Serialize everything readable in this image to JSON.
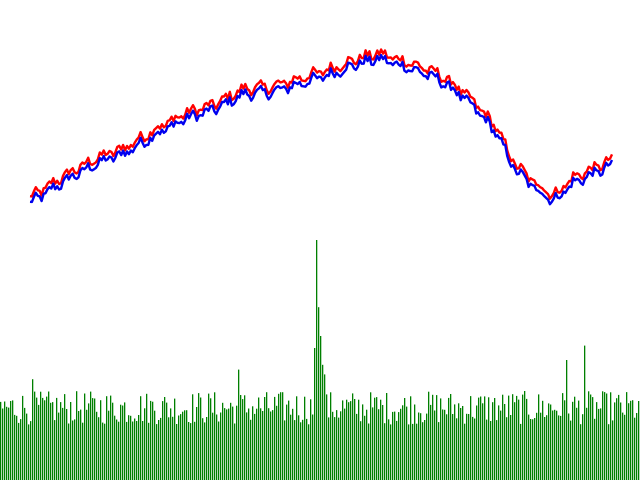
{
  "chart_data": {
    "type": "line",
    "title": "",
    "xlabel": "",
    "ylabel": "",
    "axes_visible": false,
    "grid": false,
    "legend": "none",
    "colors": {
      "series_red": "#ff0000",
      "series_blue": "#0000ee",
      "volume": "#008000",
      "background": "#ffffff"
    },
    "price_panel": {
      "ylim": [
        0,
        100
      ],
      "anchors": [
        [
          0,
          13
        ],
        [
          8,
          24
        ],
        [
          14,
          31
        ],
        [
          20,
          36
        ],
        [
          26,
          44
        ],
        [
          32,
          51
        ],
        [
          38,
          55
        ],
        [
          44,
          62
        ],
        [
          50,
          63
        ],
        [
          56,
          67
        ],
        [
          62,
          71
        ],
        [
          68,
          76
        ],
        [
          72,
          78
        ],
        [
          78,
          74
        ],
        [
          84,
          69
        ],
        [
          88,
          63
        ],
        [
          92,
          55
        ],
        [
          96,
          45
        ],
        [
          100,
          28
        ],
        [
          104,
          20
        ],
        [
          108,
          14
        ],
        [
          112,
          22
        ],
        [
          116,
          26
        ],
        [
          120,
          30
        ]
      ],
      "series": [
        {
          "name": "",
          "offset": 2.5
        },
        {
          "name": "",
          "offset": 0
        }
      ]
    },
    "volume_panel": {
      "ylim": [
        0,
        100
      ],
      "bar_count": 320,
      "baseline": 28,
      "spikes": [
        {
          "index": 158,
          "value": 100
        },
        {
          "index": 159,
          "value": 72
        },
        {
          "index": 160,
          "value": 60
        },
        {
          "index": 157,
          "value": 55
        },
        {
          "index": 161,
          "value": 48
        },
        {
          "index": 162,
          "value": 44
        },
        {
          "index": 292,
          "value": 56
        },
        {
          "index": 283,
          "value": 50
        },
        {
          "index": 119,
          "value": 46
        },
        {
          "index": 16,
          "value": 42
        }
      ]
    }
  }
}
